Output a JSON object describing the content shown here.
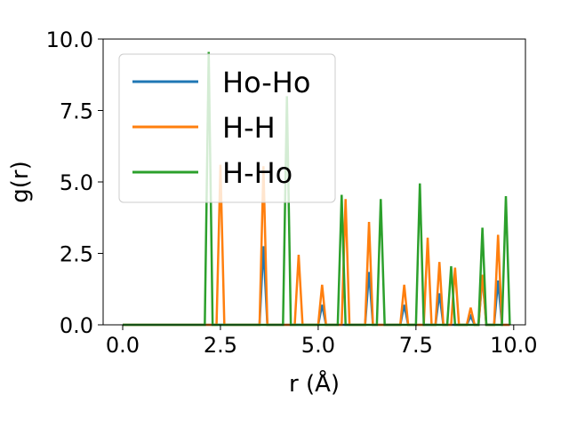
{
  "chart_data": {
    "type": "line",
    "title": "",
    "xlabel": "r (Å)",
    "ylabel": "g(r)",
    "xlim": [
      -0.5,
      10.3
    ],
    "ylim": [
      0,
      10
    ],
    "xticks": [
      0.0,
      2.5,
      5.0,
      7.5,
      10.0
    ],
    "xtick_labels": [
      "0.0",
      "2.5",
      "5.0",
      "7.5",
      "10.0"
    ],
    "yticks": [
      0.0,
      2.5,
      5.0,
      7.5,
      10.0
    ],
    "ytick_labels": [
      "0.0",
      "2.5",
      "5.0",
      "7.5",
      "10.0"
    ],
    "grid": false,
    "legend_position": "top-left",
    "bin_width": 0.1,
    "r_min": 0.0,
    "r_max": 9.9,
    "series": [
      {
        "name": "Ho-Ho",
        "color": "#1f77b4",
        "peaks": [
          [
            3.6,
            2.75
          ],
          [
            5.1,
            0.7
          ],
          [
            6.3,
            1.85
          ],
          [
            7.2,
            0.7
          ],
          [
            8.1,
            1.1
          ],
          [
            8.9,
            0.3
          ],
          [
            9.2,
            1.7
          ],
          [
            9.6,
            1.55
          ]
        ]
      },
      {
        "name": "H-H",
        "color": "#ff7f0e",
        "peaks": [
          [
            2.5,
            5.6
          ],
          [
            3.6,
            5.55
          ],
          [
            4.5,
            2.45
          ],
          [
            5.1,
            1.4
          ],
          [
            5.7,
            4.4
          ],
          [
            6.3,
            3.6
          ],
          [
            7.2,
            1.4
          ],
          [
            7.8,
            3.05
          ],
          [
            8.1,
            2.2
          ],
          [
            8.5,
            2.0
          ],
          [
            8.9,
            0.6
          ],
          [
            9.2,
            1.75
          ],
          [
            9.6,
            3.15
          ]
        ]
      },
      {
        "name": "H-Ho",
        "color": "#2ca02c",
        "peaks": [
          [
            2.2,
            9.55
          ],
          [
            4.2,
            8.0
          ],
          [
            5.6,
            4.55
          ],
          [
            6.6,
            4.4
          ],
          [
            7.6,
            4.95
          ],
          [
            8.4,
            2.05
          ],
          [
            9.2,
            3.4
          ],
          [
            9.8,
            4.5
          ]
        ]
      }
    ]
  }
}
